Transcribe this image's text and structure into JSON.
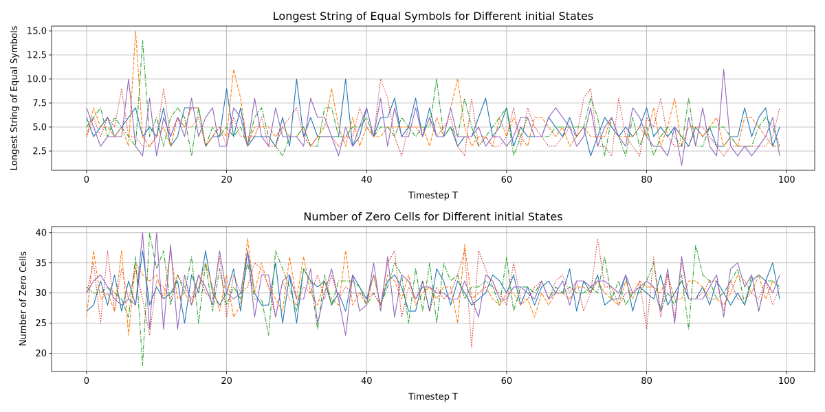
{
  "chart_data": [
    {
      "type": "line",
      "title": "Longest String of Equal Symbols for Different initial States",
      "xlabel": "Timestep T",
      "ylabel": "Longest String of Equal Symbols",
      "xlim": [
        -5,
        104
      ],
      "ylim": [
        0.5,
        15.5
      ],
      "xticks": [
        0,
        20,
        40,
        60,
        80,
        100
      ],
      "yticks": [
        2.5,
        5.0,
        7.5,
        10.0,
        12.5,
        15.0
      ],
      "ytick_labels": [
        "2.5",
        "5.0",
        "7.5",
        "10.0",
        "12.5",
        "15.0"
      ],
      "grid": true,
      "series": [
        {
          "color": "#1f77b4",
          "style": "solid",
          "values": [
            6,
            4,
            5,
            6,
            4,
            5,
            6,
            7,
            4,
            5,
            4,
            7,
            3,
            4,
            7,
            7,
            7,
            3,
            4,
            4,
            9,
            4,
            7,
            3,
            4,
            4,
            4,
            3,
            6,
            3,
            10,
            4,
            6,
            4,
            4,
            4,
            4,
            10,
            3,
            4,
            7,
            4,
            6,
            6,
            8,
            4,
            5,
            8,
            4,
            7,
            4,
            4,
            5,
            3,
            4,
            4,
            6,
            8,
            4,
            5,
            7,
            3,
            5,
            4,
            4,
            4,
            6,
            5,
            4,
            6,
            4,
            5,
            2,
            4,
            6,
            5,
            4,
            5,
            4,
            5,
            7,
            4,
            5,
            4,
            5,
            4,
            3,
            5,
            4,
            5,
            3,
            3,
            4,
            4,
            7,
            4,
            6,
            7,
            3,
            5
          ]
        },
        {
          "color": "#ff7f0e",
          "style": "dashed",
          "values": [
            4,
            7,
            5,
            5,
            4,
            5,
            3,
            15,
            4,
            3,
            4,
            5,
            3,
            6,
            5,
            7,
            7,
            3,
            4,
            5,
            4,
            11,
            8,
            3,
            5,
            5,
            5,
            4,
            5,
            4,
            4,
            5,
            3,
            4,
            5,
            9,
            5,
            3,
            6,
            3,
            5,
            4,
            4,
            5,
            5,
            5,
            5,
            5,
            5,
            3,
            6,
            4,
            7,
            10,
            5,
            3,
            4,
            4,
            3,
            6,
            4,
            6,
            4,
            3,
            6,
            6,
            5,
            4,
            5,
            3,
            4,
            5,
            4,
            4,
            4,
            6,
            4,
            4,
            4,
            5,
            4,
            7,
            3,
            5,
            8,
            3,
            5,
            5,
            4,
            5,
            6,
            3,
            4,
            3,
            6,
            6,
            5,
            4,
            3,
            3
          ]
        },
        {
          "color": "#2ca02c",
          "style": "dashdot",
          "values": [
            5,
            6,
            7,
            4,
            6,
            5,
            4,
            3,
            14,
            4,
            6,
            3,
            6,
            7,
            6,
            2,
            7,
            3,
            5,
            4,
            5,
            4,
            5,
            3,
            6,
            7,
            4,
            3,
            2,
            4,
            4,
            5,
            3,
            3,
            7,
            7,
            4,
            4,
            5,
            5,
            6,
            4,
            5,
            5,
            4,
            6,
            5,
            4,
            5,
            5,
            10,
            4,
            5,
            4,
            8,
            5,
            3,
            4,
            5,
            6,
            7,
            2,
            4,
            6,
            4,
            4,
            4,
            5,
            5,
            5,
            5,
            5,
            8,
            6,
            2,
            6,
            4,
            2,
            6,
            3,
            5,
            2,
            4,
            5,
            4,
            3,
            8,
            3,
            3,
            5,
            5,
            5,
            4,
            3,
            3,
            3,
            5,
            6,
            5,
            3
          ]
        },
        {
          "color": "#d62728",
          "style": "dotted",
          "values": [
            4,
            6,
            4,
            6,
            5,
            9,
            4,
            4,
            3,
            3,
            4,
            9,
            4,
            6,
            5,
            5,
            6,
            3,
            4,
            5,
            3,
            6,
            4,
            4,
            4,
            6,
            3,
            3,
            5,
            6,
            7,
            4,
            3,
            4,
            4,
            4,
            3,
            4,
            4,
            7,
            5,
            4,
            10,
            8,
            4,
            2,
            5,
            5,
            4,
            6,
            4,
            5,
            6,
            3,
            2,
            8,
            3,
            4,
            3,
            3,
            4,
            7,
            3,
            7,
            5,
            4,
            3,
            3,
            4,
            5,
            4,
            8,
            9,
            3,
            3,
            2,
            8,
            4,
            3,
            2,
            6,
            5,
            8,
            4,
            3,
            3,
            3,
            5,
            5,
            4,
            3,
            2,
            3,
            3,
            3,
            3,
            3,
            3,
            4,
            7
          ]
        },
        {
          "color": "#9467bd",
          "style": "solid",
          "values": [
            7,
            5,
            3,
            4,
            4,
            4,
            10,
            3,
            2,
            8,
            2,
            6,
            4,
            6,
            4,
            8,
            4,
            6,
            7,
            3,
            3,
            7,
            6,
            3,
            8,
            4,
            3,
            7,
            4,
            4,
            4,
            3,
            8,
            6,
            6,
            4,
            2,
            5,
            3,
            5,
            7,
            4,
            8,
            3,
            7,
            4,
            4,
            7,
            4,
            6,
            4,
            4,
            7,
            4,
            4,
            4,
            5,
            3,
            4,
            4,
            3,
            4,
            6,
            6,
            4,
            4,
            6,
            7,
            6,
            5,
            3,
            4,
            7,
            3,
            5,
            6,
            4,
            3,
            7,
            6,
            4,
            3,
            3,
            2,
            5,
            1,
            6,
            3,
            7,
            3,
            2,
            11,
            3,
            2,
            3,
            2,
            3,
            4,
            6,
            2
          ]
        }
      ]
    },
    {
      "type": "line",
      "title": "Number of Zero Cells for Different initial States",
      "xlabel": "Timestep T",
      "ylabel": "Number of Zero Cells",
      "xlim": [
        -5,
        104
      ],
      "ylim": [
        17,
        41
      ],
      "xticks": [
        0,
        20,
        40,
        60,
        80,
        100
      ],
      "yticks": [
        20,
        25,
        30,
        35,
        40
      ],
      "ytick_labels": [
        "20",
        "25",
        "30",
        "35",
        "40"
      ],
      "grid": true,
      "series": [
        {
          "color": "#1f77b4",
          "style": "solid",
          "values": [
            27,
            28,
            32,
            28,
            33,
            27,
            32,
            28,
            37,
            28,
            31,
            29,
            30,
            32,
            25,
            33,
            30,
            37,
            30,
            28,
            30,
            34,
            27,
            37,
            30,
            28,
            28,
            35,
            25,
            33,
            25,
            34,
            32,
            31,
            32,
            28,
            30,
            27,
            33,
            31,
            29,
            33,
            28,
            32,
            33,
            31,
            27,
            27,
            32,
            27,
            34,
            32,
            28,
            32,
            30,
            28,
            29,
            30,
            33,
            32,
            30,
            33,
            28,
            31,
            28,
            31,
            32,
            30,
            30,
            34,
            27,
            32,
            30,
            33,
            28,
            29,
            29,
            33,
            27,
            31,
            30,
            29,
            33,
            28,
            30,
            32,
            29,
            29,
            31,
            28,
            32,
            30,
            28,
            30,
            28,
            32,
            33,
            32,
            35,
            29
          ]
        },
        {
          "color": "#ff7f0e",
          "style": "dashed",
          "values": [
            26,
            37,
            29,
            30,
            27,
            37,
            23,
            35,
            33,
            32,
            33,
            29,
            37,
            29,
            30,
            28,
            31,
            35,
            31,
            27,
            33,
            26,
            28,
            39,
            30,
            35,
            31,
            29,
            27,
            36,
            29,
            36,
            30,
            28,
            32,
            29,
            28,
            37,
            28,
            30,
            28,
            33,
            28,
            33,
            32,
            29,
            33,
            28,
            30,
            31,
            29,
            31,
            31,
            25,
            38,
            29,
            30,
            31,
            29,
            28,
            30,
            30,
            28,
            29,
            26,
            30,
            28,
            30,
            30,
            29,
            31,
            31,
            30,
            32,
            30,
            29,
            28,
            32,
            29,
            32,
            31,
            31,
            30,
            33,
            29,
            29,
            32,
            32,
            31,
            29,
            29,
            28,
            30,
            33,
            32,
            30,
            33,
            29,
            32,
            31
          ]
        },
        {
          "color": "#2ca02c",
          "style": "dashdot",
          "values": [
            31,
            30,
            30,
            31,
            30,
            29,
            26,
            36,
            18,
            40,
            34,
            37,
            28,
            33,
            30,
            36,
            25,
            35,
            27,
            34,
            28,
            31,
            29,
            35,
            29,
            29,
            23,
            37,
            34,
            31,
            27,
            34,
            32,
            24,
            33,
            28,
            32,
            32,
            32,
            31,
            28,
            30,
            28,
            31,
            35,
            33,
            25,
            34,
            27,
            35,
            25,
            35,
            32,
            33,
            29,
            31,
            31,
            32,
            31,
            28,
            36,
            27,
            31,
            31,
            30,
            32,
            29,
            31,
            30,
            31,
            30,
            30,
            31,
            30,
            36,
            29,
            32,
            28,
            30,
            30,
            32,
            35,
            27,
            30,
            28,
            33,
            24,
            38,
            33,
            32,
            29,
            30,
            32,
            34,
            28,
            33,
            27,
            32,
            32,
            31
          ]
        },
        {
          "color": "#d62728",
          "style": "dotted",
          "values": [
            30,
            35,
            25,
            37,
            27,
            34,
            29,
            34,
            29,
            23,
            32,
            31,
            29,
            33,
            31,
            29,
            33,
            30,
            29,
            36,
            26,
            33,
            30,
            31,
            35,
            34,
            31,
            26,
            32,
            29,
            28,
            31,
            30,
            33,
            29,
            33,
            29,
            31,
            30,
            30,
            29,
            30,
            28,
            35,
            37,
            26,
            31,
            29,
            32,
            27,
            31,
            29,
            30,
            33,
            37,
            21,
            37,
            34,
            31,
            30,
            28,
            35,
            29,
            29,
            31,
            32,
            29,
            32,
            33,
            30,
            32,
            27,
            30,
            39,
            31,
            31,
            28,
            30,
            30,
            32,
            24,
            36,
            26,
            33,
            26,
            35,
            29,
            29,
            30,
            32,
            32,
            27,
            32,
            29,
            29,
            30,
            29,
            32,
            28,
            31
          ]
        },
        {
          "color": "#9467bd",
          "style": "solid",
          "values": [
            30,
            32,
            33,
            31,
            29,
            28,
            29,
            28,
            40,
            24,
            40,
            24,
            38,
            24,
            33,
            28,
            33,
            31,
            28,
            37,
            30,
            29,
            30,
            37,
            26,
            33,
            33,
            26,
            32,
            33,
            29,
            29,
            34,
            25,
            30,
            34,
            29,
            23,
            33,
            27,
            28,
            35,
            27,
            36,
            26,
            33,
            32,
            29,
            31,
            31,
            30,
            30,
            29,
            29,
            32,
            29,
            26,
            33,
            32,
            29,
            29,
            31,
            31,
            30,
            29,
            32,
            29,
            30,
            32,
            28,
            32,
            32,
            31,
            32,
            32,
            31,
            30,
            33,
            30,
            31,
            32,
            31,
            27,
            34,
            25,
            36,
            29,
            29,
            29,
            31,
            33,
            26,
            34,
            35,
            31,
            33,
            27,
            32,
            30,
            33
          ]
        }
      ]
    }
  ]
}
